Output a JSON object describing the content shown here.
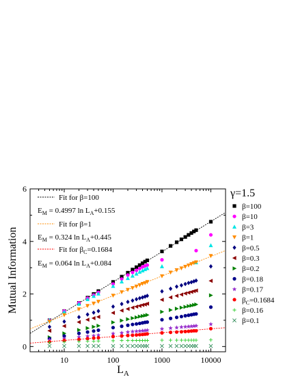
{
  "chart_data": {
    "type": "scatter",
    "title": "",
    "xlabel": "L",
    "xlabel_sub": "A",
    "ylabel": "Mutual Information",
    "xscale": "log",
    "xlim": [
      2,
      20000
    ],
    "ylim": [
      -0.2,
      6
    ],
    "x_ticks": [
      10,
      100,
      1000,
      10000
    ],
    "x_tick_labels": [
      "10",
      "100",
      "1000",
      "10000"
    ],
    "y_ticks": [
      0,
      2,
      4,
      6
    ],
    "y_tick_labels": [
      "0",
      "2",
      "4",
      "6"
    ],
    "gamma_label": "γ=1.5",
    "legend_position": "right",
    "fit_annotations": [
      {
        "label": "Fit for β=100",
        "equation": "E",
        "eq_sub": "M",
        "equation_rest": " = 0.4997 ln L",
        "eq_sub2": "A",
        "equation_tail": "+0.155",
        "color": "#000000",
        "slope": 0.4997,
        "intercept": 0.155
      },
      {
        "label": "Fit for β=1",
        "equation": "E",
        "eq_sub": "M",
        "equation_rest": " = 0.324 ln L",
        "eq_sub2": "A",
        "equation_tail": "+0.445",
        "color": "#ff8c00",
        "slope": 0.324,
        "intercept": 0.445
      },
      {
        "label_main": "Fit for β",
        "label_sub": "C",
        "label_tail": "=0.1684",
        "equation": "E",
        "eq_sub": "M",
        "equation_rest": " = 0.064 ln L",
        "eq_sub2": "A",
        "equation_tail": "+0.084",
        "color": "#ff0000",
        "slope": 0.064,
        "intercept": 0.084
      }
    ],
    "series": [
      {
        "name": "β=100",
        "marker": "square",
        "color": "#000000",
        "x": [
          5,
          10,
          20,
          30,
          40,
          50,
          100,
          150,
          200,
          250,
          300,
          350,
          400,
          450,
          500,
          1000,
          1500,
          2000,
          2500,
          3000,
          3500,
          4000,
          4500,
          5000,
          10000
        ],
        "y": [
          1.0,
          1.35,
          1.66,
          1.86,
          2.0,
          2.11,
          2.46,
          2.66,
          2.81,
          2.93,
          3.02,
          3.1,
          3.17,
          3.23,
          3.28,
          3.62,
          3.83,
          3.97,
          4.08,
          4.17,
          4.25,
          4.32,
          4.38,
          4.43,
          4.75
        ]
      },
      {
        "name": "β=10",
        "marker": "circle",
        "color": "#ff00ff",
        "x": [
          5,
          10,
          20,
          30,
          40,
          50,
          100,
          150,
          200,
          250,
          300,
          350,
          400,
          450,
          500,
          1000,
          5000,
          10000
        ],
        "y": [
          1.0,
          1.35,
          1.66,
          1.84,
          1.96,
          2.06,
          2.38,
          2.57,
          2.72,
          2.82,
          2.9,
          2.97,
          3.03,
          3.07,
          3.1,
          3.3,
          3.65,
          4.25
        ]
      },
      {
        "name": "β=3",
        "marker": "triangle-up",
        "color": "#00e5e5",
        "x": [
          5,
          10,
          20,
          30,
          40,
          50,
          100,
          150,
          200,
          250,
          300,
          350,
          400,
          450,
          500,
          1000,
          5000,
          10000
        ],
        "y": [
          1.0,
          1.32,
          1.62,
          1.8,
          1.92,
          2.01,
          2.3,
          2.47,
          2.6,
          2.69,
          2.77,
          2.84,
          2.89,
          2.94,
          2.98,
          3.05,
          3.2,
          3.85
        ]
      },
      {
        "name": "β=1",
        "marker": "triangle-down",
        "color": "#ff8c00",
        "x": [
          5,
          10,
          20,
          30,
          40,
          50,
          100,
          150,
          200,
          250,
          300,
          350,
          400,
          450,
          500,
          1000,
          1500,
          2000,
          2500,
          3000,
          3500,
          4000,
          4500,
          5000,
          10000
        ],
        "y": [
          0.95,
          1.2,
          1.42,
          1.55,
          1.64,
          1.71,
          1.94,
          2.07,
          2.16,
          2.23,
          2.29,
          2.34,
          2.39,
          2.42,
          2.46,
          2.68,
          2.82,
          2.91,
          2.98,
          3.04,
          3.09,
          3.14,
          3.18,
          3.21,
          3.45
        ]
      },
      {
        "name": "β=0.5",
        "marker": "diamond",
        "color": "#000080",
        "x": [
          5,
          10,
          20,
          30,
          40,
          50,
          100,
          150,
          200,
          250,
          300,
          350,
          400,
          450,
          500,
          1000,
          1500,
          2000,
          2500,
          3000,
          3500,
          4000,
          4500,
          5000,
          10000
        ],
        "y": [
          0.75,
          0.95,
          1.12,
          1.22,
          1.29,
          1.35,
          1.52,
          1.62,
          1.7,
          1.75,
          1.8,
          1.84,
          1.87,
          1.9,
          1.93,
          2.1,
          2.2,
          2.28,
          2.33,
          2.38,
          2.42,
          2.45,
          2.48,
          2.51,
          3.05
        ]
      },
      {
        "name": "β=0.3",
        "marker": "triangle-left",
        "color": "#8b0000",
        "x": [
          5,
          10,
          20,
          30,
          40,
          50,
          100,
          150,
          200,
          250,
          300,
          350,
          400,
          450,
          500,
          1000,
          1500,
          2000,
          2500,
          3000,
          3500,
          4000,
          4500,
          5000,
          10000
        ],
        "y": [
          0.6,
          0.78,
          0.93,
          1.02,
          1.08,
          1.13,
          1.28,
          1.37,
          1.43,
          1.48,
          1.52,
          1.55,
          1.58,
          1.6,
          1.63,
          1.78,
          1.87,
          1.93,
          1.98,
          2.02,
          2.05,
          2.08,
          2.11,
          2.13,
          2.5
        ]
      },
      {
        "name": "β=0.2",
        "marker": "triangle-right",
        "color": "#008000",
        "x": [
          5,
          10,
          20,
          30,
          40,
          50,
          100,
          150,
          200,
          250,
          300,
          350,
          400,
          450,
          500,
          1000,
          1500,
          2000,
          2500,
          3000,
          3500,
          4000,
          4500,
          5000,
          10000
        ],
        "y": [
          0.35,
          0.5,
          0.63,
          0.7,
          0.75,
          0.79,
          0.92,
          0.99,
          1.04,
          1.08,
          1.11,
          1.14,
          1.16,
          1.18,
          1.2,
          1.32,
          1.39,
          1.44,
          1.48,
          1.51,
          1.54,
          1.56,
          1.58,
          1.6,
          1.95
        ]
      },
      {
        "name": "β=0.18",
        "marker": "circle",
        "color": "#00008b",
        "x": [
          5,
          10,
          20,
          30,
          40,
          50,
          100,
          150,
          200,
          250,
          300,
          350,
          400,
          450,
          500,
          1000,
          1500,
          2000,
          2500,
          3000,
          3500,
          4000,
          4500,
          5000,
          10000
        ],
        "y": [
          0.3,
          0.4,
          0.5,
          0.55,
          0.59,
          0.62,
          0.72,
          0.77,
          0.81,
          0.84,
          0.86,
          0.88,
          0.9,
          0.92,
          0.93,
          1.02,
          1.07,
          1.11,
          1.14,
          1.17,
          1.19,
          1.21,
          1.23,
          1.24,
          1.5
        ]
      },
      {
        "name": "β=0.17",
        "marker": "star",
        "color": "#9932cc",
        "x": [
          5,
          10,
          20,
          30,
          40,
          50,
          100,
          150,
          200,
          250,
          300,
          350,
          400,
          450,
          500,
          1000,
          1500,
          2000,
          2500,
          3000,
          3500,
          4000,
          4500,
          5000,
          10000
        ],
        "y": [
          0.25,
          0.3,
          0.36,
          0.39,
          0.41,
          0.43,
          0.49,
          0.52,
          0.55,
          0.57,
          0.58,
          0.59,
          0.6,
          0.61,
          0.62,
          0.67,
          0.7,
          0.72,
          0.74,
          0.75,
          0.76,
          0.77,
          0.78,
          0.79,
          0.85
        ]
      },
      {
        "name": "β_C=0.1684",
        "marker": "circle",
        "color": "#ff0000",
        "x": [
          5,
          10,
          20,
          30,
          40,
          50,
          100,
          150,
          200,
          250,
          300,
          350,
          400,
          450,
          500,
          1000,
          1500,
          2000,
          2500,
          3000,
          3500,
          4000,
          4500,
          5000,
          10000
        ],
        "y": [
          0.18,
          0.23,
          0.27,
          0.3,
          0.32,
          0.33,
          0.38,
          0.4,
          0.42,
          0.43,
          0.44,
          0.45,
          0.46,
          0.47,
          0.48,
          0.52,
          0.54,
          0.55,
          0.56,
          0.57,
          0.58,
          0.59,
          0.6,
          0.6,
          0.68
        ]
      },
      {
        "name": "β=0.16",
        "marker": "plus",
        "color": "#32cd32",
        "x": [
          5,
          10,
          20,
          30,
          40,
          50,
          100,
          150,
          200,
          250,
          300,
          350,
          400,
          450,
          500,
          1000,
          1500,
          2000,
          2500,
          3000,
          3500,
          4000,
          4500,
          5000,
          10000
        ],
        "y": [
          0.15,
          0.17,
          0.19,
          0.2,
          0.2,
          0.21,
          0.22,
          0.23,
          0.23,
          0.23,
          0.23,
          0.23,
          0.23,
          0.23,
          0.23,
          0.24,
          0.24,
          0.24,
          0.24,
          0.24,
          0.24,
          0.24,
          0.24,
          0.24,
          0.25
        ]
      },
      {
        "name": "β=0.1",
        "marker": "x",
        "color": "#2e8b57",
        "x": [
          5,
          10,
          20,
          30,
          40,
          50,
          100,
          150,
          200,
          250,
          300,
          350,
          400,
          450,
          500,
          1000,
          1500,
          2000,
          2500,
          3000,
          3500,
          4000,
          4500,
          5000,
          10000
        ],
        "y": [
          0.02,
          0.02,
          0.02,
          0.02,
          0.02,
          0.02,
          0.02,
          0.02,
          0.02,
          0.02,
          0.02,
          0.02,
          0.02,
          0.02,
          0.02,
          0.02,
          0.02,
          0.02,
          0.02,
          0.02,
          0.02,
          0.02,
          0.02,
          0.02,
          0.02
        ]
      }
    ]
  }
}
